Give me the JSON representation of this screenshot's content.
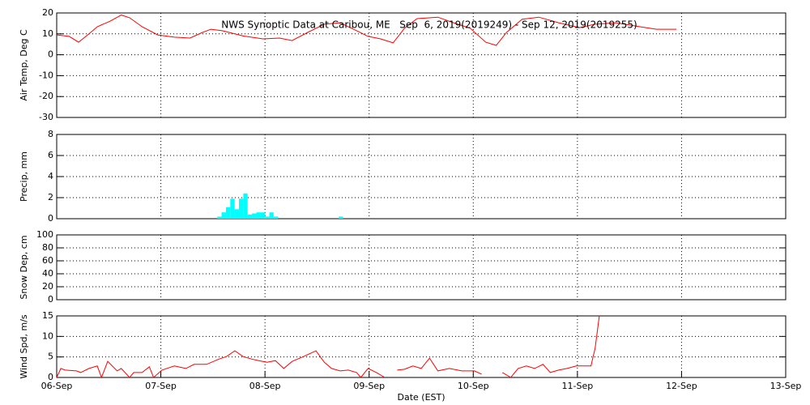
{
  "chart_data": [
    {
      "type": "line",
      "title": "NWS Synoptic Data at Caribou, ME   Sep  6, 2019(2019249) - Sep 12, 2019(2019255)",
      "ylabel": "Air Temp, Deg C",
      "xlim": [
        0,
        7
      ],
      "ylim": [
        -30,
        20
      ],
      "yticks": [
        -30,
        -20,
        -10,
        0,
        10,
        20
      ],
      "grid": true,
      "series": [
        {
          "color": "#ff0000",
          "x": [
            0,
            0.12,
            0.21,
            0.31,
            0.39,
            0.51,
            0.62,
            0.7,
            0.82,
            0.97,
            1.13,
            1.28,
            1.4,
            1.48,
            1.59,
            1.79,
            1.98,
            2.14,
            2.26,
            2.41,
            2.57,
            2.72,
            2.88,
            2.99,
            3.11,
            3.23,
            3.34,
            3.46,
            3.66,
            3.81,
            3.97,
            4.12,
            4.22,
            4.32,
            4.47,
            4.63,
            4.82,
            5.02,
            5.17,
            5.37,
            5.6,
            5.76,
            5.95
          ],
          "values": [
            9.5,
            8.8,
            6,
            10,
            13.4,
            16,
            19,
            17.7,
            13.4,
            9.5,
            8.4,
            8,
            10.7,
            12.2,
            11.5,
            9,
            7.6,
            8,
            6.8,
            10.7,
            14.6,
            15.3,
            11.5,
            8.8,
            7.6,
            5.7,
            12.7,
            17.3,
            18,
            15.3,
            12.7,
            6,
            4.5,
            10.7,
            17,
            18,
            15.3,
            13,
            14.6,
            15.3,
            13.4,
            12.2,
            12.2
          ]
        }
      ]
    },
    {
      "type": "histogram",
      "ylabel": "Precip, mm",
      "xlim": [
        0,
        7
      ],
      "ylim": [
        0,
        8
      ],
      "yticks": [
        0,
        2,
        4,
        6,
        8
      ],
      "grid": true,
      "color": "#00ffff",
      "bins": [
        1.542,
        1.583,
        1.625,
        1.667,
        1.708,
        1.75,
        1.792,
        1.833,
        1.875,
        1.917,
        1.958,
        2,
        2.042,
        2.083,
        2.125,
        2.708,
        2.75
      ],
      "counts": [
        0.2,
        0.6,
        1.1,
        1.9,
        0.9,
        1.9,
        2.4,
        0.4,
        0.5,
        0.6,
        0.6,
        0.2,
        0.6,
        0.2,
        0,
        0.2
      ]
    },
    {
      "type": "line",
      "ylabel": "Snow Dep, cm",
      "xlim": [
        0,
        7
      ],
      "ylim": [
        0,
        100
      ],
      "yticks": [
        0,
        20,
        40,
        60,
        80,
        100
      ],
      "grid": true,
      "series": []
    },
    {
      "type": "line",
      "ylabel": "Wind Spd, m/s",
      "xlabel": "Date (EST)",
      "xlim": [
        0,
        7
      ],
      "ylim": [
        0,
        15
      ],
      "yticks": [
        0,
        5,
        10,
        15
      ],
      "grid": true,
      "xticks": [
        {
          "value": 0,
          "label": "06-Sep"
        },
        {
          "value": 1,
          "label": "07-Sep"
        },
        {
          "value": 2,
          "label": "08-Sep"
        },
        {
          "value": 3,
          "label": "09-Sep"
        },
        {
          "value": 4,
          "label": "10-Sep"
        },
        {
          "value": 5,
          "label": "11-Sep"
        },
        {
          "value": 6,
          "label": "12-Sep"
        },
        {
          "value": 7,
          "label": "13-Sep"
        }
      ],
      "series": [
        {
          "color": "#ff0000",
          "x": [
            0,
            0.04,
            0.08,
            0.19,
            0.23,
            0.31,
            0.39,
            0.43,
            0.49,
            0.58,
            0.62,
            0.7,
            0.74,
            0.82,
            0.89,
            0.93,
            1.01,
            1.13,
            1.24,
            1.32,
            1.44,
            1.56,
            1.63,
            1.71,
            1.79,
            1.87,
            1.94,
            2.02,
            2.1,
            2.18,
            2.26,
            2.37,
            2.49,
            2.57,
            2.64,
            2.72,
            2.8,
            2.88,
            2.92,
            2.99,
            3.07,
            3.15,
            3.23,
            3.27,
            3.34,
            3.42,
            3.5,
            3.58,
            3.66,
            3.77,
            3.89,
            4.01,
            4.08,
            4.12,
            4.28,
            4.36,
            4.43,
            4.51,
            4.59,
            4.67,
            4.74,
            4.82,
            4.9,
            4.99,
            5.13,
            5.17,
            5.21
          ],
          "values": [
            0,
            2.2,
            1.8,
            1.6,
            1.2,
            2.2,
            2.8,
            0,
            3.9,
            1.6,
            2.2,
            0,
            1.2,
            1.2,
            2.6,
            0,
            1.8,
            2.8,
            2.2,
            3.2,
            3.2,
            4.5,
            5.1,
            6.5,
            5.1,
            4.5,
            4.1,
            3.7,
            4.1,
            2.2,
            3.9,
            5.1,
            6.5,
            3.7,
            2.2,
            1.6,
            1.8,
            1.2,
            0,
            2.2,
            1.2,
            0,
            null,
            1.8,
            2,
            2.8,
            2.2,
            4.7,
            1.6,
            2.2,
            1.6,
            1.6,
            0.8,
            null,
            1.2,
            0,
            2.2,
            2.8,
            2.2,
            3.2,
            1.2,
            1.8,
            2.2,
            2.8,
            2.8,
            7.1,
            15
          ]
        }
      ]
    }
  ]
}
